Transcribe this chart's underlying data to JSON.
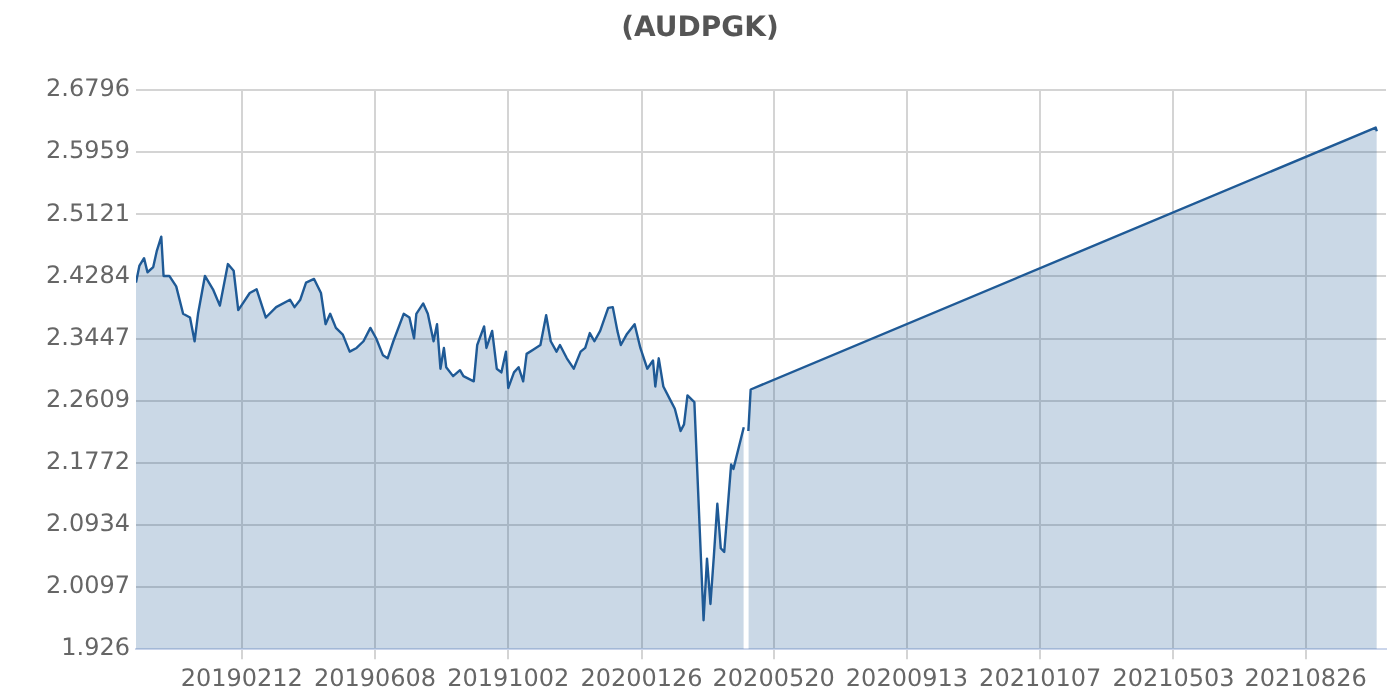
{
  "chart_data": {
    "type": "area",
    "title": "(AUDPGK)",
    "x": [
      "2018-11-12",
      "2018-11-15",
      "2018-11-19",
      "2018-11-22",
      "2018-11-27",
      "2018-11-30",
      "2018-12-04",
      "2018-12-06",
      "2018-12-11",
      "2018-12-17",
      "2018-12-23",
      "2018-12-29",
      "2019-01-02",
      "2019-01-05",
      "2019-01-11",
      "2019-01-18",
      "2019-01-24",
      "2019-01-31",
      "2019-02-05",
      "2019-02-09",
      "2019-02-13",
      "2019-02-19",
      "2019-02-25",
      "2019-03-05",
      "2019-03-14",
      "2019-03-26",
      "2019-03-30",
      "2019-04-04",
      "2019-04-09",
      "2019-04-16",
      "2019-04-22",
      "2019-04-26",
      "2019-04-30",
      "2019-05-05",
      "2019-05-11",
      "2019-05-17",
      "2019-05-23",
      "2019-05-29",
      "2019-06-04",
      "2019-06-09",
      "2019-06-15",
      "2019-06-19",
      "2019-06-24",
      "2019-07-03",
      "2019-07-08",
      "2019-07-12",
      "2019-07-14",
      "2019-07-20",
      "2019-07-24",
      "2019-07-29",
      "2019-08-01",
      "2019-08-04",
      "2019-08-07",
      "2019-08-09",
      "2019-08-15",
      "2019-08-21",
      "2019-08-24",
      "2019-09-02",
      "2019-09-05",
      "2019-09-11",
      "2019-09-13",
      "2019-09-18",
      "2019-09-22",
      "2019-09-26",
      "2019-09-30",
      "2019-10-02",
      "2019-10-07",
      "2019-10-11",
      "2019-10-15",
      "2019-10-18",
      "2019-10-24",
      "2019-10-30",
      "2019-11-04",
      "2019-11-08",
      "2019-11-13",
      "2019-11-16",
      "2019-11-22",
      "2019-11-28",
      "2019-12-04",
      "2019-12-08",
      "2019-12-12",
      "2019-12-16",
      "2019-12-21",
      "2019-12-28",
      "2020-01-01",
      "2020-01-05",
      "2020-01-08",
      "2020-01-13",
      "2020-01-20",
      "2020-01-25",
      "2020-01-31",
      "2020-02-05",
      "2020-02-07",
      "2020-02-10",
      "2020-02-14",
      "2020-02-20",
      "2020-02-24",
      "2020-02-29",
      "2020-03-03",
      "2020-03-06",
      "2020-03-12",
      "2020-03-20",
      "2020-03-23",
      "2020-03-26",
      "2020-03-29",
      "2020-04-01",
      "2020-04-04",
      "2020-04-07",
      "2020-04-13",
      "2020-04-15",
      "2020-04-24",
      "2020-04-27",
      "2020-04-28",
      "2020-04-30",
      "2021-10-26",
      "2021-10-27"
    ],
    "values": [
      2.42,
      2.443,
      2.453,
      2.434,
      2.441,
      2.462,
      2.482,
      2.429,
      2.429,
      2.415,
      2.378,
      2.373,
      2.341,
      2.378,
      2.429,
      2.411,
      2.389,
      2.445,
      2.436,
      2.383,
      2.392,
      2.406,
      2.411,
      2.373,
      2.387,
      2.397,
      2.387,
      2.397,
      2.42,
      2.425,
      2.406,
      2.364,
      2.378,
      2.359,
      2.35,
      2.327,
      2.332,
      2.341,
      2.359,
      2.345,
      2.322,
      2.318,
      2.341,
      2.378,
      2.373,
      2.345,
      2.378,
      2.392,
      2.378,
      2.341,
      2.364,
      2.304,
      2.332,
      2.306,
      2.294,
      2.302,
      2.294,
      2.287,
      2.336,
      2.361,
      2.332,
      2.355,
      2.304,
      2.299,
      2.327,
      2.278,
      2.299,
      2.306,
      2.287,
      2.324,
      2.33,
      2.336,
      2.376,
      2.341,
      2.327,
      2.336,
      2.318,
      2.304,
      2.327,
      2.332,
      2.352,
      2.341,
      2.355,
      2.386,
      2.387,
      2.355,
      2.336,
      2.35,
      2.364,
      2.332,
      2.304,
      2.315,
      2.28,
      2.318,
      2.28,
      2.262,
      2.25,
      2.22,
      2.229,
      2.268,
      2.259,
      1.965,
      2.048,
      1.987,
      2.052,
      2.122,
      2.062,
      2.057,
      2.175,
      2.169,
      2.225,
      null,
      2.22,
      2.276,
      2.629,
      2.624
    ],
    "color": "#1f5a96",
    "xlim": [
      "2018-11-12",
      "2021-11-04"
    ],
    "xticks": [
      {
        "value": "2019-02-12",
        "label": "20190212"
      },
      {
        "value": "2019-06-08",
        "label": "20190608"
      },
      {
        "value": "2019-10-02",
        "label": "20191002"
      },
      {
        "value": "2020-01-26",
        "label": "20200126"
      },
      {
        "value": "2020-05-20",
        "label": "20200520"
      },
      {
        "value": "2020-09-13",
        "label": "20200913"
      },
      {
        "value": "2021-01-07",
        "label": "20210107"
      },
      {
        "value": "2021-05-03",
        "label": "20210503"
      },
      {
        "value": "2021-08-26",
        "label": "20210826"
      }
    ],
    "ylim": [
      1.926,
      2.6796
    ],
    "yticks": [
      1.926,
      2.0097,
      2.0934,
      2.1772,
      2.2609,
      2.3447,
      2.4284,
      2.5121,
      2.5959,
      2.6796
    ],
    "grid": true,
    "marker": "none",
    "line_style": "solid"
  }
}
